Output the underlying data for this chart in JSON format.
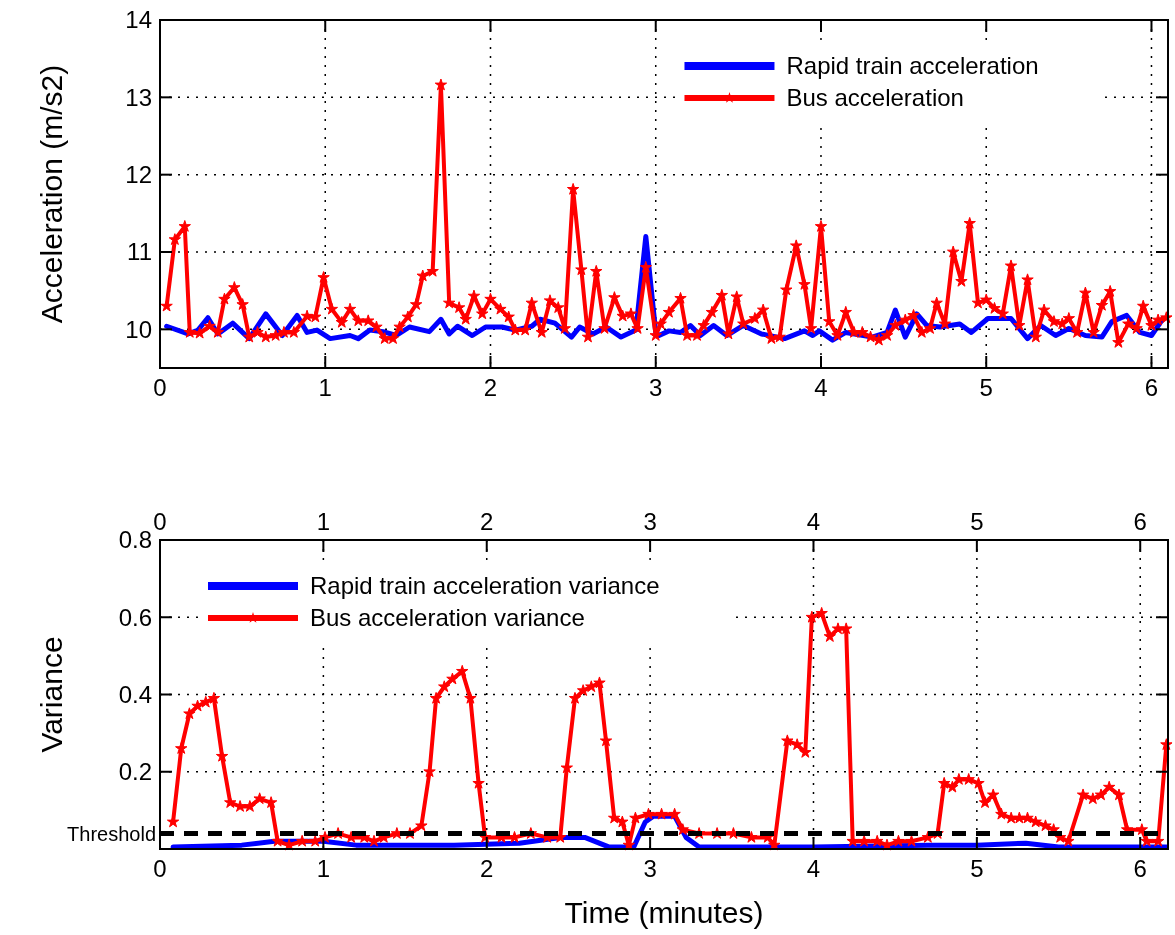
{
  "chart_data": [
    {
      "type": "line",
      "ylabel": "Acceleration (m/s2)",
      "xlim": [
        0,
        6.1
      ],
      "xticks": [
        0,
        1,
        2,
        3,
        4,
        5,
        6
      ],
      "ylim": [
        9.5,
        14
      ],
      "yticks": [
        10,
        11,
        12,
        13,
        14
      ],
      "grid": true,
      "legend": "top right",
      "series": [
        {
          "name": "Rapid train acceleration",
          "color": "#0000ff",
          "marker": "none",
          "x": [
            0.04,
            0.17,
            0.23,
            0.29,
            0.35,
            0.44,
            0.54,
            0.64,
            0.74,
            0.83,
            0.89,
            0.95,
            1.03,
            1.15,
            1.2,
            1.27,
            1.35,
            1.43,
            1.51,
            1.63,
            1.7,
            1.75,
            1.8,
            1.89,
            1.97,
            2.07,
            2.15,
            2.25,
            2.3,
            2.39,
            2.49,
            2.54,
            2.62,
            2.7,
            2.79,
            2.88,
            2.94,
            3.0,
            3.02,
            3.08,
            3.15,
            3.21,
            3.27,
            3.35,
            3.43,
            3.53,
            3.64,
            3.78,
            3.9,
            3.95,
            3.99,
            4.07,
            4.15,
            4.31,
            4.4,
            4.45,
            4.51,
            4.58,
            4.64,
            4.72,
            4.84,
            4.91,
            5.01,
            5.15,
            5.25,
            5.33,
            5.42,
            5.5,
            5.6,
            5.7,
            5.76,
            5.85,
            5.93,
            6.0,
            6.07
          ],
          "values": [
            10.04,
            9.94,
            9.99,
            10.15,
            9.94,
            10.08,
            9.88,
            10.2,
            9.92,
            10.18,
            9.96,
            9.99,
            9.88,
            9.92,
            9.88,
            9.99,
            9.97,
            9.92,
            10.03,
            9.97,
            10.13,
            9.94,
            10.04,
            9.92,
            10.03,
            10.03,
            9.99,
            10.04,
            10.13,
            10.08,
            9.9,
            10.03,
            9.94,
            10.03,
            9.9,
            9.99,
            11.2,
            9.96,
            9.92,
            9.98,
            9.96,
            10.05,
            9.92,
            10.05,
            9.92,
            10.05,
            9.94,
            9.88,
            9.98,
            9.92,
            9.98,
            9.86,
            9.96,
            9.9,
            9.96,
            10.25,
            9.9,
            10.2,
            10.05,
            10.03,
            10.07,
            9.96,
            10.14,
            10.14,
            9.88,
            10.05,
            9.92,
            10.01,
            9.92,
            9.9,
            10.1,
            10.18,
            9.96,
            9.92,
            10.14
          ]
        },
        {
          "name": "Bus acceleration",
          "color": "#ff0000",
          "marker": "star",
          "x": [
            0.04,
            0.09,
            0.15,
            0.18,
            0.24,
            0.3,
            0.35,
            0.39,
            0.45,
            0.5,
            0.54,
            0.59,
            0.64,
            0.7,
            0.75,
            0.81,
            0.89,
            0.94,
            0.99,
            1.04,
            1.1,
            1.15,
            1.2,
            1.26,
            1.31,
            1.36,
            1.41,
            1.45,
            1.5,
            1.55,
            1.59,
            1.65,
            1.7,
            1.75,
            1.81,
            1.85,
            1.9,
            1.95,
            2.0,
            2.06,
            2.11,
            2.15,
            2.21,
            2.25,
            2.31,
            2.36,
            2.41,
            2.45,
            2.5,
            2.55,
            2.59,
            2.64,
            2.69,
            2.75,
            2.8,
            2.85,
            2.89,
            2.94,
            3.0,
            3.03,
            3.08,
            3.15,
            3.19,
            3.25,
            3.29,
            3.34,
            3.4,
            3.44,
            3.49,
            3.53,
            3.6,
            3.65,
            3.7,
            3.75,
            3.79,
            3.85,
            3.9,
            3.94,
            4.0,
            4.05,
            4.1,
            4.15,
            4.2,
            4.25,
            4.3,
            4.35,
            4.4,
            4.45,
            4.51,
            4.56,
            4.61,
            4.66,
            4.7,
            4.75,
            4.8,
            4.85,
            4.9,
            4.95,
            5.0,
            5.05,
            5.1,
            5.15,
            5.2,
            5.25,
            5.3,
            5.35,
            5.41,
            5.46,
            5.5,
            5.55,
            5.6,
            5.65,
            5.7,
            5.75,
            5.8,
            5.86,
            5.91,
            5.95,
            6.0,
            6.04,
            6.09
          ],
          "values": [
            10.3,
            11.16,
            11.33,
            9.96,
            9.95,
            10.04,
            9.96,
            10.39,
            10.54,
            10.32,
            9.9,
            9.96,
            9.9,
            9.92,
            9.96,
            9.96,
            10.17,
            10.16,
            10.67,
            10.26,
            10.09,
            10.26,
            10.11,
            10.11,
            10.03,
            9.88,
            9.88,
            10.03,
            10.16,
            10.32,
            10.69,
            10.75,
            13.16,
            10.34,
            10.28,
            10.13,
            10.43,
            10.2,
            10.39,
            10.26,
            10.16,
            9.99,
            9.99,
            10.34,
            9.96,
            10.37,
            10.28,
            10.01,
            11.81,
            10.77,
            9.9,
            10.75,
            10.01,
            10.41,
            10.17,
            10.2,
            10.01,
            10.8,
            9.92,
            10.07,
            10.22,
            10.4,
            9.92,
            9.92,
            10.05,
            10.22,
            10.44,
            9.94,
            10.42,
            10.07,
            10.14,
            10.25,
            9.88,
            9.9,
            10.51,
            11.08,
            10.58,
            10.01,
            11.33,
            10.1,
            9.92,
            10.22,
            9.96,
            9.96,
            9.9,
            9.86,
            9.92,
            10.05,
            10.12,
            10.18,
            9.96,
            10.01,
            10.34,
            10.07,
            11.0,
            10.62,
            11.37,
            10.34,
            10.38,
            10.27,
            10.2,
            10.82,
            10.05,
            10.64,
            9.9,
            10.25,
            10.1,
            10.07,
            10.14,
            9.96,
            10.47,
            9.96,
            10.31,
            10.49,
            9.83,
            10.07,
            10.01,
            10.3,
            10.05,
            10.12,
            10.15
          ]
        }
      ]
    },
    {
      "type": "line",
      "xlabel": "Time (minutes)",
      "ylabel": "Variance",
      "xlim": [
        0,
        6.17
      ],
      "xticks": [
        0,
        1,
        2,
        3,
        4,
        5,
        6
      ],
      "x2lim": [
        0,
        6.17
      ],
      "x2ticks": [
        0,
        1,
        2,
        3,
        4,
        5,
        6
      ],
      "ylim": [
        0,
        0.8
      ],
      "yticks": [
        0.2,
        0.4,
        0.6,
        0.8
      ],
      "grid": true,
      "legend": "top left",
      "ref_lines": [
        {
          "axis": "y",
          "value": 0.04,
          "label": "Threshold",
          "color": "#000000",
          "line_style": "dashed"
        }
      ],
      "series": [
        {
          "name": "Rapid train acceleration variance",
          "color": "#0000ff",
          "marker": "none",
          "x": [
            0.08,
            0.5,
            0.7,
            1.0,
            1.2,
            1.8,
            2.2,
            2.45,
            2.6,
            2.75,
            2.9,
            2.97,
            3.02,
            3.15,
            3.22,
            3.3,
            4.0,
            4.7,
            5.0,
            5.3,
            5.5,
            6.16
          ],
          "values": [
            0.005,
            0.01,
            0.02,
            0.02,
            0.01,
            0.01,
            0.015,
            0.03,
            0.03,
            0.005,
            0.005,
            0.07,
            0.085,
            0.085,
            0.03,
            0.005,
            0.005,
            0.01,
            0.01,
            0.015,
            0.005,
            0.005
          ]
        },
        {
          "name": "Bus acceleration variance",
          "color": "#ff0000",
          "marker": "star",
          "x": [
            0.08,
            0.13,
            0.18,
            0.23,
            0.28,
            0.33,
            0.38,
            0.43,
            0.49,
            0.55,
            0.61,
            0.68,
            0.72,
            0.79,
            0.87,
            0.95,
            1.01,
            1.09,
            1.17,
            1.25,
            1.31,
            1.37,
            1.45,
            1.53,
            1.6,
            1.65,
            1.69,
            1.74,
            1.79,
            1.85,
            1.9,
            1.95,
            1.99,
            2.09,
            2.17,
            2.27,
            2.37,
            2.45,
            2.49,
            2.54,
            2.59,
            2.64,
            2.69,
            2.73,
            2.78,
            2.83,
            2.87,
            2.91,
            2.99,
            3.07,
            3.15,
            3.2,
            3.3,
            3.41,
            3.51,
            3.62,
            3.72,
            3.76,
            3.84,
            3.9,
            3.95,
            3.99,
            4.05,
            4.1,
            4.15,
            4.2,
            4.24,
            4.31,
            4.39,
            4.45,
            4.52,
            4.6,
            4.7,
            4.76,
            4.8,
            4.85,
            4.89,
            4.95,
            5.01,
            5.05,
            5.1,
            5.15,
            5.21,
            5.26,
            5.31,
            5.36,
            5.42,
            5.47,
            5.51,
            5.56,
            5.65,
            5.71,
            5.76,
            5.81,
            5.87,
            5.92,
            6.01,
            6.04,
            6.11,
            6.16
          ],
          "values": [
            0.07,
            0.26,
            0.35,
            0.37,
            0.38,
            0.39,
            0.24,
            0.12,
            0.11,
            0.11,
            0.13,
            0.12,
            0.02,
            0.01,
            0.02,
            0.02,
            0.03,
            0.04,
            0.03,
            0.03,
            0.02,
            0.03,
            0.04,
            0.04,
            0.06,
            0.2,
            0.39,
            0.42,
            0.44,
            0.46,
            0.39,
            0.17,
            0.03,
            0.03,
            0.03,
            0.04,
            0.03,
            0.03,
            0.21,
            0.39,
            0.41,
            0.42,
            0.43,
            0.28,
            0.08,
            0.07,
            0.01,
            0.08,
            0.09,
            0.09,
            0.09,
            0.05,
            0.04,
            0.04,
            0.04,
            0.03,
            0.03,
            0.01,
            0.28,
            0.27,
            0.25,
            0.6,
            0.61,
            0.55,
            0.57,
            0.57,
            0.02,
            0.02,
            0.02,
            0.01,
            0.02,
            0.02,
            0.03,
            0.04,
            0.17,
            0.16,
            0.18,
            0.18,
            0.17,
            0.12,
            0.14,
            0.09,
            0.08,
            0.08,
            0.08,
            0.07,
            0.06,
            0.05,
            0.03,
            0.02,
            0.14,
            0.13,
            0.14,
            0.16,
            0.14,
            0.05,
            0.05,
            0.02,
            0.02,
            0.27
          ]
        }
      ]
    }
  ]
}
